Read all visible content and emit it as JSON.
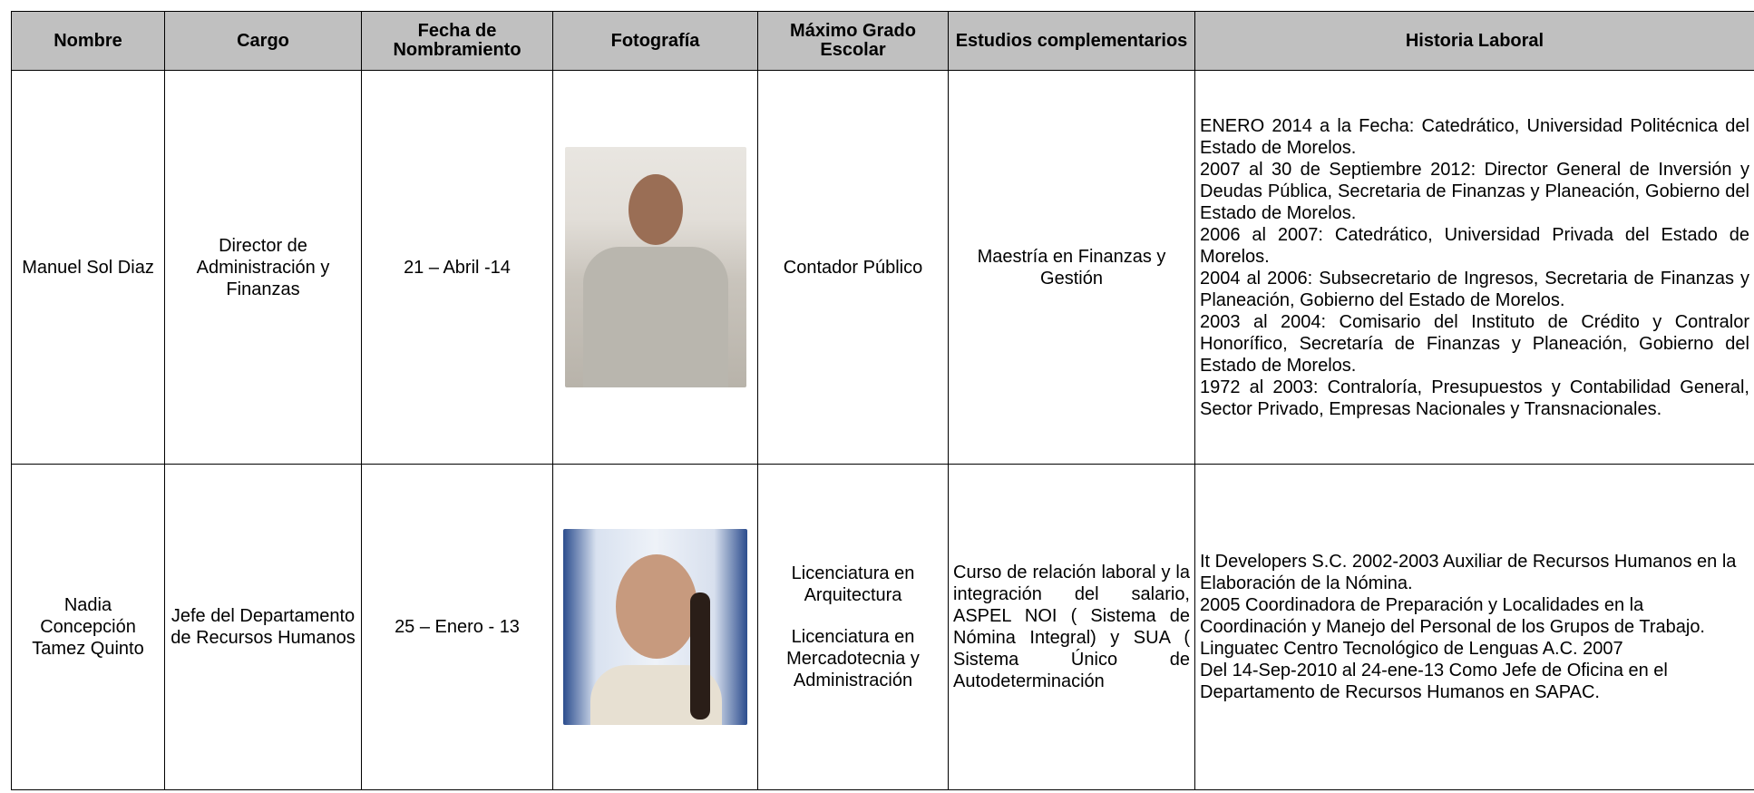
{
  "table": {
    "headers": [
      "Nombre",
      "Cargo",
      "Fecha de Nombramiento",
      "Fotografía",
      "Máximo Grado Escolar",
      "Estudios complementarios",
      "Historia Laboral"
    ],
    "rows": [
      {
        "nombre": "Manuel Sol Diaz",
        "cargo": "Director de Administración y Finanzas",
        "fecha": "21 – Abril -14",
        "maximo": [
          "Contador Público"
        ],
        "estudios": "Maestría en Finanzas y Gestión",
        "historia": [
          "ENERO 2014 a la Fecha: Catedrático, Universidad Politécnica del Estado de Morelos.",
          "2007 al 30 de Septiembre 2012: Director General de Inversión y Deudas Pública, Secretaria de Finanzas y Planeación, Gobierno del Estado de Morelos.",
          "2006 al 2007: Catedrático, Universidad Privada del Estado de Morelos.",
          "2004 al 2006: Subsecretario de Ingresos, Secretaria de Finanzas y Planeación, Gobierno del Estado de Morelos.",
          "2003 al 2004: Comisario del Instituto de Crédito y Contralor Honorífico, Secretaría de Finanzas y Planeación, Gobierno del Estado de Morelos.",
          "1972 al 2003: Contraloría, Presupuestos y Contabilidad General, Sector Privado, Empresas Nacionales y Transnacionales."
        ]
      },
      {
        "nombre": "Nadia Concepción Tamez Quinto",
        "cargo": "Jefe del Departamento de Recursos Humanos",
        "fecha": "25 – Enero - 13",
        "maximo": [
          "Licenciatura en Arquitectura",
          "Licenciatura en Mercadotecnia y Administración"
        ],
        "estudios": "Curso de relación laboral y la integración del salario, ASPEL NOI ( Sistema de Nómina Integral) y SUA ( Sistema Único de Autodeterminación",
        "historia": [
          "It Developers S.C.  2002-2003 Auxiliar de Recursos Humanos en la Elaboración de la Nómina.",
          "2005 Coordinadora  de Preparación y Localidades en la Coordinación y Manejo del Personal de los  Grupos de Trabajo.",
          "Linguatec  Centro Tecnológico de Lenguas A.C. 2007",
          "Del 14-Sep-2010 al 24-ene-13 Como Jefe de Oficina en el Departamento de Recursos Humanos en SAPAC."
        ]
      }
    ]
  }
}
